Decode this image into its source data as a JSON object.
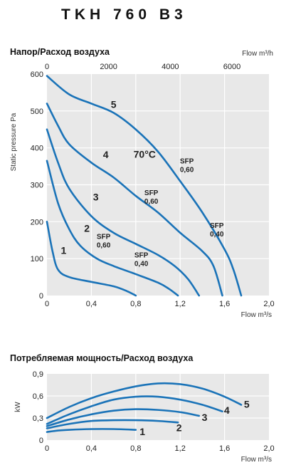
{
  "title": "TKH 760 B3",
  "colors": {
    "curve": "#1a73b8",
    "plot_bg": "#e8e8e8",
    "grid": "#ffffff"
  },
  "chart_data": [
    {
      "type": "line",
      "title": "Напор/Расход воздуха",
      "xlabel": "Flow m³/s",
      "ylabel": "Static pressure Pa",
      "top_axis_label": "Flow m³/h",
      "xlim": [
        0,
        2.0
      ],
      "ylim": [
        0,
        600
      ],
      "x_ticks": [
        "0",
        "0,4",
        "0,8",
        "1,2",
        "1,6",
        "2,0"
      ],
      "y_ticks": [
        "0",
        "100",
        "200",
        "300",
        "400",
        "500",
        "600"
      ],
      "top_ticks": [
        "0",
        "2000",
        "4000",
        "6000"
      ],
      "grid": true,
      "series": [
        {
          "name": "1",
          "x": [
            0,
            0.05,
            0.1,
            0.2,
            0.4,
            0.6,
            0.72,
            0.8
          ],
          "y": [
            200,
            120,
            70,
            50,
            37,
            25,
            12,
            0
          ]
        },
        {
          "name": "2",
          "x": [
            0,
            0.1,
            0.2,
            0.3,
            0.45,
            0.6,
            0.8,
            1.0,
            1.1,
            1.18
          ],
          "y": [
            365,
            250,
            180,
            135,
            100,
            80,
            58,
            35,
            18,
            0
          ]
        },
        {
          "name": "3",
          "x": [
            0,
            0.1,
            0.2,
            0.4,
            0.6,
            0.8,
            1.0,
            1.15,
            1.27,
            1.37
          ],
          "y": [
            450,
            360,
            290,
            215,
            170,
            140,
            110,
            80,
            45,
            0
          ]
        },
        {
          "name": "4",
          "x": [
            0,
            0.1,
            0.2,
            0.4,
            0.6,
            0.8,
            1.0,
            1.2,
            1.4,
            1.5,
            1.58
          ],
          "y": [
            520,
            460,
            410,
            360,
            320,
            270,
            225,
            170,
            120,
            80,
            0
          ]
        },
        {
          "name": "5",
          "x": [
            0,
            0.2,
            0.4,
            0.6,
            0.8,
            1.0,
            1.2,
            1.4,
            1.6,
            1.68,
            1.75
          ],
          "y": [
            595,
            545,
            520,
            495,
            450,
            390,
            310,
            225,
            125,
            70,
            0
          ]
        }
      ],
      "annotations": [
        {
          "text": "5",
          "kind": "curve",
          "x": 0.6,
          "y": 508
        },
        {
          "text": "4",
          "kind": "curve",
          "x": 0.53,
          "y": 372
        },
        {
          "text": "3",
          "kind": "curve",
          "x": 0.44,
          "y": 258
        },
        {
          "text": "2",
          "kind": "curve",
          "x": 0.36,
          "y": 173
        },
        {
          "text": "1",
          "kind": "curve",
          "x": 0.15,
          "y": 113
        },
        {
          "text": "70°C",
          "kind": "temp",
          "x": 0.88,
          "y": 373
        },
        {
          "text": "SFP",
          "kind": "sfp",
          "x": 1.26,
          "y": 358
        },
        {
          "text": "0,60",
          "kind": "sfp",
          "x": 1.26,
          "y": 335
        },
        {
          "text": "SFP",
          "kind": "sfp",
          "x": 0.94,
          "y": 272
        },
        {
          "text": "0,60",
          "kind": "sfp",
          "x": 0.94,
          "y": 249
        },
        {
          "text": "SFP",
          "kind": "sfp",
          "x": 0.51,
          "y": 153
        },
        {
          "text": "0,60",
          "kind": "sfp",
          "x": 0.51,
          "y": 130
        },
        {
          "text": "SFP",
          "kind": "sfp",
          "x": 0.85,
          "y": 103
        },
        {
          "text": "0,40",
          "kind": "sfp",
          "x": 0.85,
          "y": 80
        },
        {
          "text": "SFP",
          "kind": "sfp",
          "x": 1.53,
          "y": 183
        },
        {
          "text": "0,40",
          "kind": "sfp",
          "x": 1.53,
          "y": 160
        }
      ]
    },
    {
      "type": "line",
      "title": "Потребляемая мощность/Расход воздуха",
      "xlabel": "Flow m³/s",
      "ylabel": "kW",
      "xlim": [
        0,
        2.0
      ],
      "ylim": [
        0,
        0.9
      ],
      "x_ticks": [
        "0",
        "0,4",
        "0,8",
        "1,2",
        "1,6",
        "2,0"
      ],
      "y_ticks": [
        "0",
        "0,3",
        "0,6",
        "0,9"
      ],
      "grid": true,
      "series": [
        {
          "name": "1",
          "x": [
            0,
            0.1,
            0.2,
            0.4,
            0.6,
            0.8
          ],
          "y": [
            0.11,
            0.13,
            0.14,
            0.15,
            0.15,
            0.14
          ]
        },
        {
          "name": "2",
          "x": [
            0,
            0.2,
            0.4,
            0.6,
            0.8,
            1.0,
            1.18
          ],
          "y": [
            0.16,
            0.22,
            0.26,
            0.27,
            0.27,
            0.26,
            0.24
          ]
        },
        {
          "name": "3",
          "x": [
            0,
            0.2,
            0.4,
            0.6,
            0.8,
            1.0,
            1.2,
            1.37
          ],
          "y": [
            0.19,
            0.28,
            0.35,
            0.4,
            0.42,
            0.41,
            0.38,
            0.33
          ]
        },
        {
          "name": "4",
          "x": [
            0,
            0.2,
            0.4,
            0.6,
            0.8,
            1.0,
            1.2,
            1.4,
            1.58
          ],
          "y": [
            0.22,
            0.35,
            0.46,
            0.55,
            0.59,
            0.59,
            0.55,
            0.48,
            0.39
          ]
        },
        {
          "name": "5",
          "x": [
            0,
            0.2,
            0.4,
            0.6,
            0.8,
            1.0,
            1.2,
            1.4,
            1.6,
            1.75
          ],
          "y": [
            0.3,
            0.45,
            0.57,
            0.66,
            0.73,
            0.77,
            0.76,
            0.7,
            0.59,
            0.48
          ]
        }
      ],
      "annotations": [
        {
          "text": "1",
          "kind": "curve",
          "x": 0.86,
          "y": 0.07
        },
        {
          "text": "2",
          "kind": "curve",
          "x": 1.19,
          "y": 0.12
        },
        {
          "text": "3",
          "kind": "curve",
          "x": 1.42,
          "y": 0.26
        },
        {
          "text": "4",
          "kind": "curve",
          "x": 1.62,
          "y": 0.36
        },
        {
          "text": "5",
          "kind": "curve",
          "x": 1.8,
          "y": 0.44
        }
      ]
    }
  ]
}
